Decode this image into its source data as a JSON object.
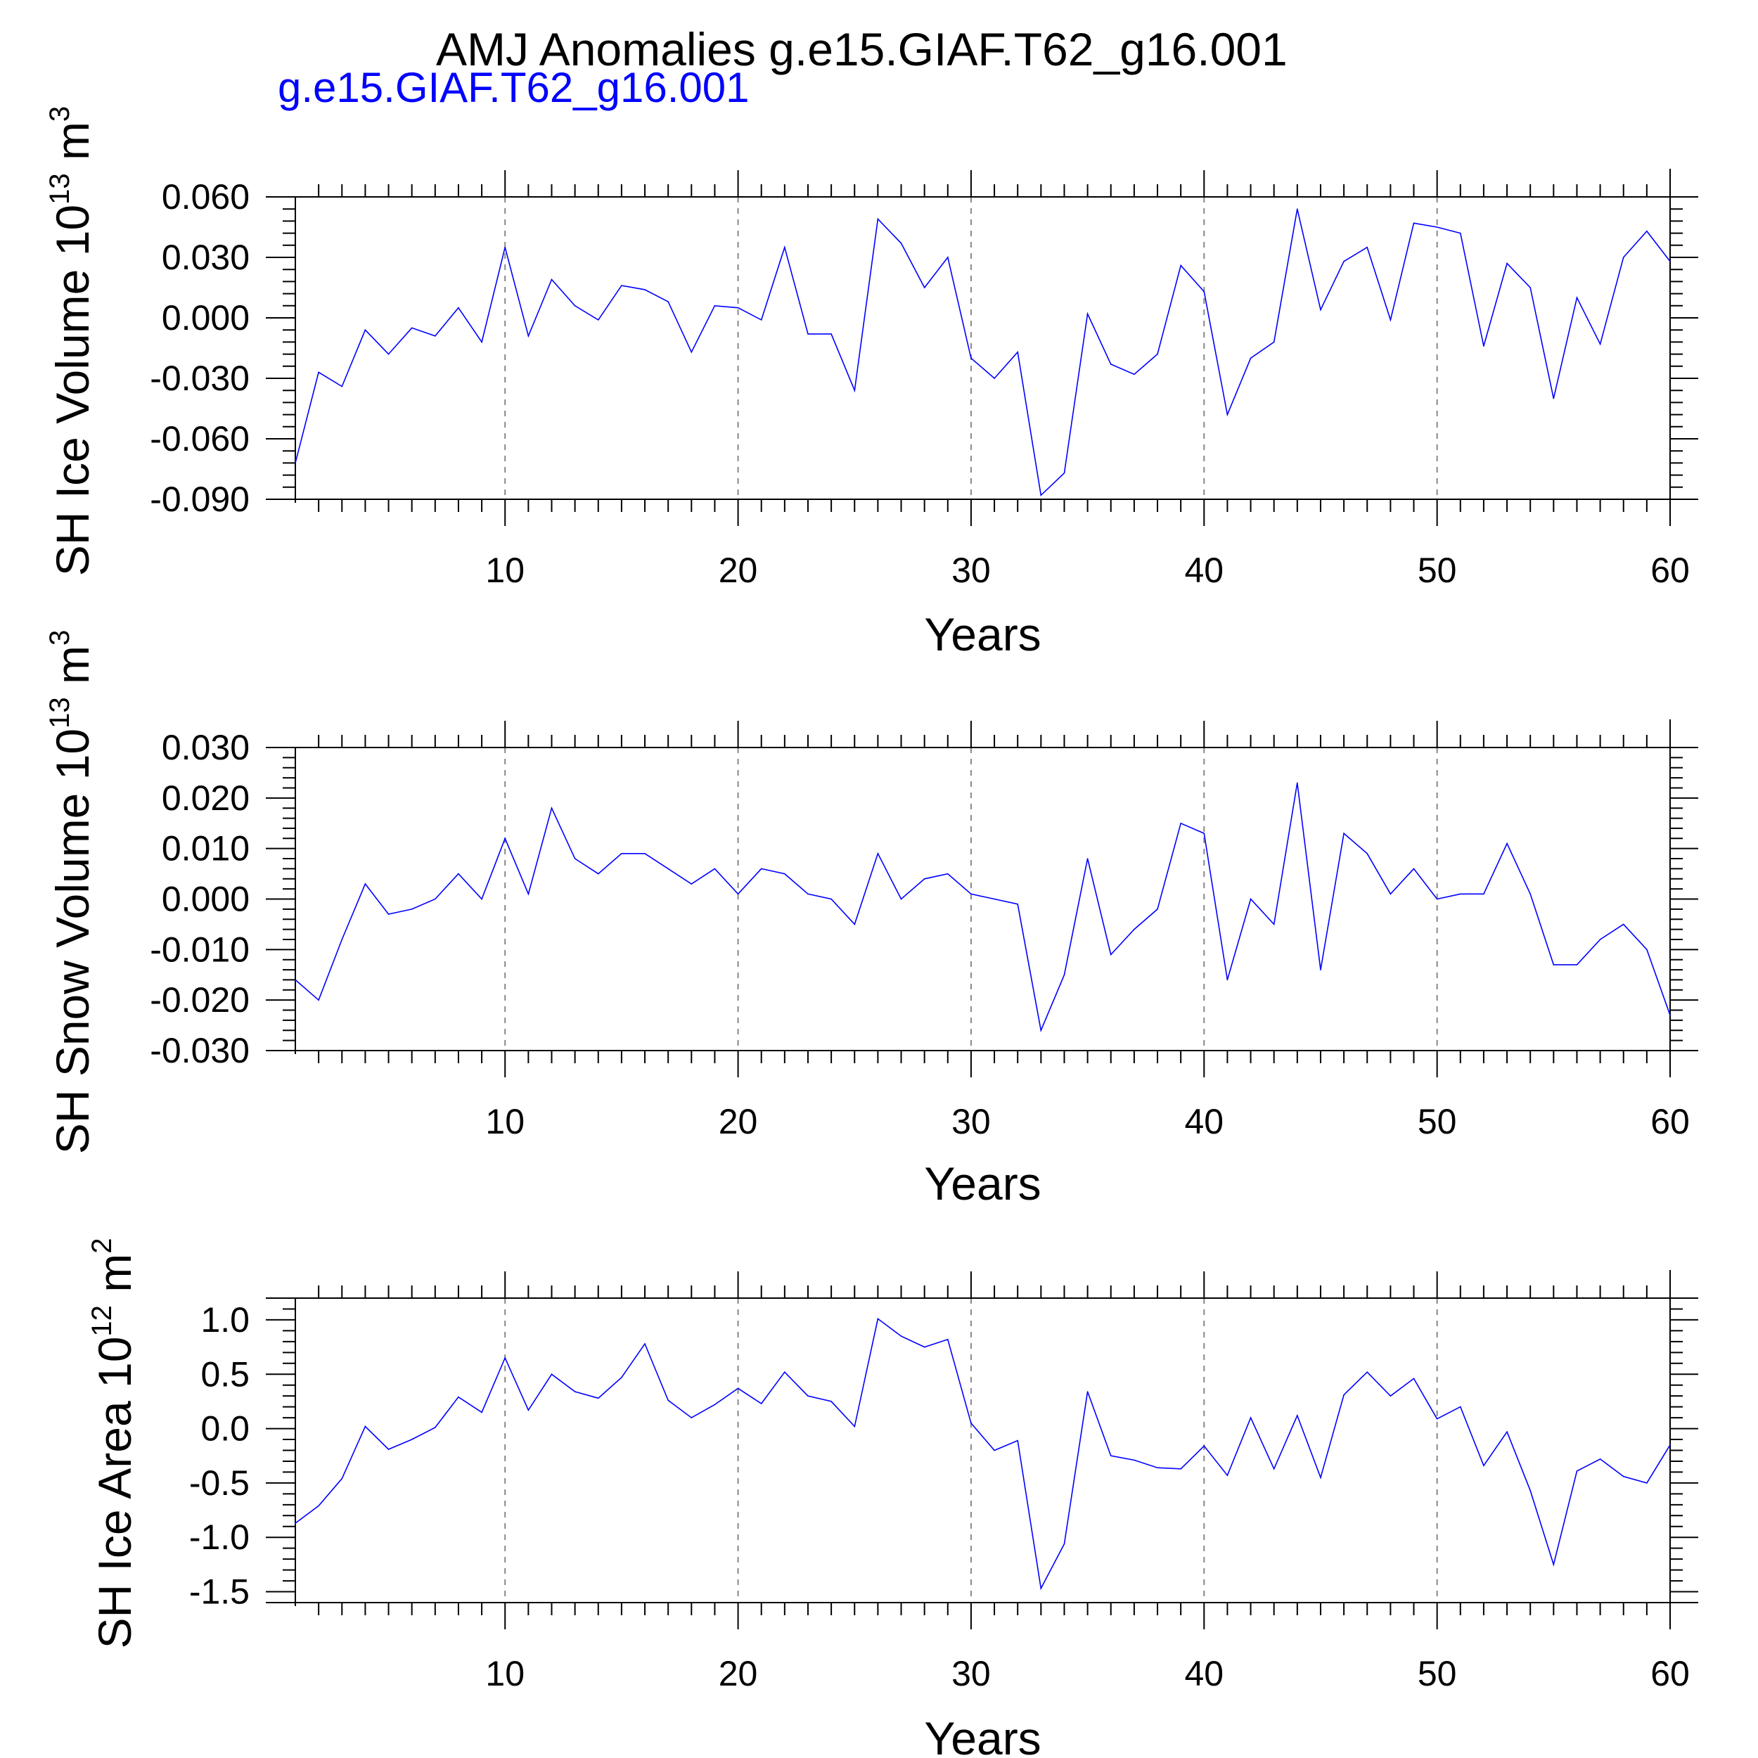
{
  "title": "AMJ Anomalies g.e15.GIAF.T62_g16.001",
  "subtitle": "g.e15.GIAF.T62_g16.001",
  "colors": {
    "series": "#0000ff",
    "axis": "#000000",
    "grid": "#888888"
  },
  "chart_data": [
    {
      "type": "line",
      "ylabel": "SH Ice Volume 10",
      "ylabel_exp": "13",
      "ylabel_unit": " m",
      "ylabel_unit_exp": "3",
      "xlabel": "Years",
      "xlim": [
        1,
        60
      ],
      "ylim": [
        -0.09,
        0.06
      ],
      "xticks": [
        10,
        20,
        30,
        40,
        50,
        60
      ],
      "xtick_labels": [
        "10",
        "20",
        "30",
        "40",
        "50",
        "60"
      ],
      "yticks": [
        0.06,
        0.03,
        0.0,
        -0.03,
        -0.06,
        -0.09
      ],
      "ytick_labels": [
        "0.060",
        "0.030",
        "0.000",
        "-0.030",
        "-0.060",
        "-0.090"
      ],
      "grid": "vertical dashed",
      "series": [
        {
          "name": "g.e15.GIAF.T62_g16.001",
          "values": [
            -0.072,
            -0.027,
            -0.034,
            -0.006,
            -0.018,
            -0.005,
            -0.009,
            0.005,
            -0.012,
            0.035,
            -0.009,
            0.019,
            0.006,
            -0.001,
            0.016,
            0.014,
            0.008,
            -0.017,
            0.006,
            0.005,
            -0.001,
            0.035,
            -0.008,
            -0.008,
            -0.036,
            0.049,
            0.037,
            0.015,
            0.03,
            -0.02,
            -0.03,
            -0.017,
            -0.088,
            -0.077,
            0.002,
            -0.023,
            -0.028,
            -0.018,
            0.026,
            0.013,
            -0.048,
            -0.02,
            -0.012,
            0.054,
            0.004,
            0.028,
            0.035,
            -0.001,
            0.047,
            0.045,
            0.042,
            -0.014,
            0.027,
            0.015,
            -0.04,
            0.01,
            -0.013,
            0.03,
            0.043,
            0.028
          ]
        }
      ]
    },
    {
      "type": "line",
      "ylabel": "SH Snow Volume 10",
      "ylabel_exp": "13",
      "ylabel_unit": " m",
      "ylabel_unit_exp": "3",
      "xlabel": "Years",
      "xlim": [
        1,
        60
      ],
      "ylim": [
        -0.03,
        0.03
      ],
      "xticks": [
        10,
        20,
        30,
        40,
        50,
        60
      ],
      "xtick_labels": [
        "10",
        "20",
        "30",
        "40",
        "50",
        "60"
      ],
      "yticks": [
        0.03,
        0.02,
        0.01,
        0.0,
        -0.01,
        -0.02,
        -0.03
      ],
      "ytick_labels": [
        "0.030",
        "0.020",
        "0.010",
        "0.000",
        "-0.010",
        "-0.020",
        "-0.030"
      ],
      "grid": "vertical dashed",
      "series": [
        {
          "name": "g.e15.GIAF.T62_g16.001",
          "values": [
            -0.016,
            -0.02,
            -0.008,
            0.003,
            -0.003,
            -0.002,
            0.0,
            0.005,
            -0.0,
            0.012,
            0.001,
            0.018,
            0.008,
            0.005,
            0.009,
            0.009,
            0.006,
            0.003,
            0.006,
            0.001,
            0.006,
            0.005,
            0.001,
            -0.0,
            -0.005,
            0.009,
            0.0,
            0.004,
            0.005,
            0.001,
            0.0,
            -0.001,
            -0.026,
            -0.015,
            0.008,
            -0.011,
            -0.006,
            -0.002,
            0.015,
            0.013,
            -0.016,
            0.0,
            -0.005,
            0.023,
            -0.014,
            0.013,
            0.009,
            0.001,
            0.006,
            -0.0,
            0.001,
            0.001,
            0.011,
            0.001,
            -0.013,
            -0.013,
            -0.008,
            -0.005,
            -0.01,
            -0.023
          ]
        }
      ]
    },
    {
      "type": "line",
      "ylabel": "SH Ice Area 10",
      "ylabel_exp": "12",
      "ylabel_unit": " m",
      "ylabel_unit_exp": "2",
      "xlabel": "Years",
      "xlim": [
        1,
        60
      ],
      "ylim": [
        -1.6,
        1.2
      ],
      "xticks": [
        10,
        20,
        30,
        40,
        50,
        60
      ],
      "xtick_labels": [
        "10",
        "20",
        "30",
        "40",
        "50",
        "60"
      ],
      "yticks": [
        1.0,
        0.5,
        0.0,
        -0.5,
        -1.0,
        -1.5
      ],
      "ytick_labels": [
        "1.0",
        "0.5",
        "0.0",
        "-0.5",
        "-1.0",
        "-1.5"
      ],
      "grid": "vertical dashed",
      "series": [
        {
          "name": "g.e15.GIAF.T62_g16.001",
          "values": [
            -0.87,
            -0.71,
            -0.46,
            0.02,
            -0.19,
            -0.1,
            0.01,
            0.29,
            0.15,
            0.65,
            0.17,
            0.5,
            0.34,
            0.28,
            0.47,
            0.78,
            0.26,
            0.1,
            0.22,
            0.37,
            0.23,
            0.52,
            0.3,
            0.25,
            0.02,
            1.01,
            0.85,
            0.75,
            0.82,
            0.05,
            -0.2,
            -0.11,
            -1.47,
            -1.06,
            0.34,
            -0.25,
            -0.29,
            -0.36,
            -0.37,
            -0.16,
            -0.43,
            0.1,
            -0.37,
            0.12,
            -0.45,
            0.31,
            0.52,
            0.3,
            0.46,
            0.09,
            0.2,
            -0.34,
            -0.03,
            -0.57,
            -1.25,
            -0.39,
            -0.28,
            -0.44,
            -0.5,
            -0.15
          ]
        }
      ]
    }
  ]
}
